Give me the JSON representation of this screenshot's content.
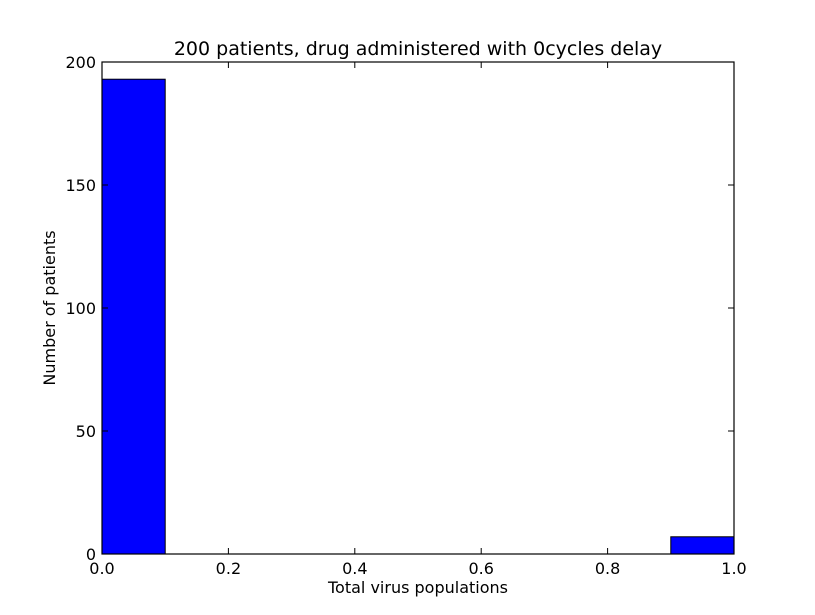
{
  "chart_data": {
    "type": "bar",
    "title": "200 patients, drug administered with 0cycles delay",
    "xlabel": "Total virus populations",
    "ylabel": "Number of patients",
    "xlim": [
      0.0,
      1.0
    ],
    "ylim": [
      0,
      200
    ],
    "xticks": [
      "0.0",
      "0.2",
      "0.4",
      "0.6",
      "0.8",
      "1.0"
    ],
    "yticks": [
      "0",
      "50",
      "100",
      "150",
      "200"
    ],
    "bins": [
      {
        "x0": 0.0,
        "x1": 0.1,
        "value": 193
      },
      {
        "x0": 0.1,
        "x1": 0.2,
        "value": 0
      },
      {
        "x0": 0.2,
        "x1": 0.3,
        "value": 0
      },
      {
        "x0": 0.3,
        "x1": 0.4,
        "value": 0
      },
      {
        "x0": 0.4,
        "x1": 0.5,
        "value": 0
      },
      {
        "x0": 0.5,
        "x1": 0.6,
        "value": 0
      },
      {
        "x0": 0.6,
        "x1": 0.7,
        "value": 0
      },
      {
        "x0": 0.7,
        "x1": 0.8,
        "value": 0
      },
      {
        "x0": 0.8,
        "x1": 0.9,
        "value": 0
      },
      {
        "x0": 0.9,
        "x1": 1.0,
        "value": 7
      }
    ],
    "bar_color": "#0000ff",
    "grid": false,
    "legend": "none"
  }
}
